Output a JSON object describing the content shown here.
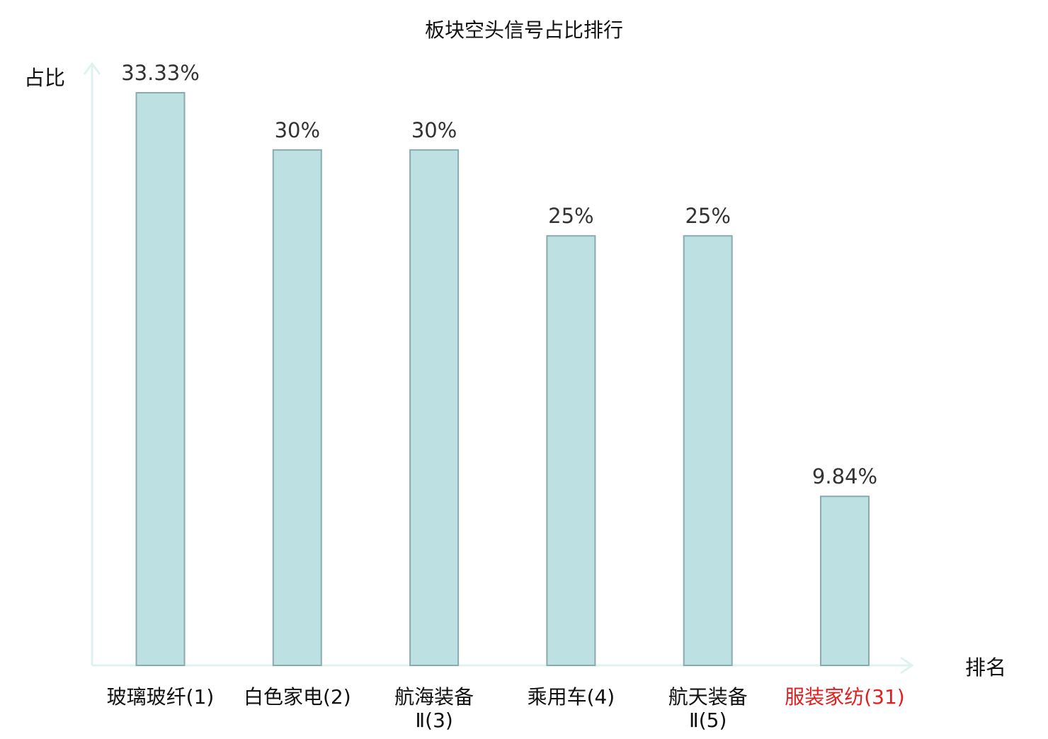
{
  "chart_data": {
    "type": "bar",
    "title": "板块空头信号占比排行",
    "ylabel": "占比",
    "xlabel": "排名",
    "ylim": [
      0,
      33.33
    ],
    "grid": false,
    "categories": [
      {
        "lines": [
          "玻璃玻纤(1)"
        ],
        "highlight": false
      },
      {
        "lines": [
          "白色家电(2)"
        ],
        "highlight": false
      },
      {
        "lines": [
          "航海装备",
          "Ⅱ(3)"
        ],
        "highlight": false
      },
      {
        "lines": [
          "乘用车(4)"
        ],
        "highlight": false
      },
      {
        "lines": [
          "航天装备",
          "Ⅱ(5)"
        ],
        "highlight": false
      },
      {
        "lines": [
          "服装家纺(31)"
        ],
        "highlight": true
      }
    ],
    "values": [
      33.33,
      30,
      30,
      25,
      25,
      9.84
    ],
    "value_labels": [
      "33.33%",
      "30%",
      "30%",
      "25%",
      "25%",
      "9.84%"
    ],
    "colors": {
      "bar_fill": "#bde0e3",
      "bar_stroke": "#8aabae",
      "axis": "#dff2ef",
      "text": "#333333",
      "title": "#111111",
      "highlight_text": "#e02020"
    }
  }
}
